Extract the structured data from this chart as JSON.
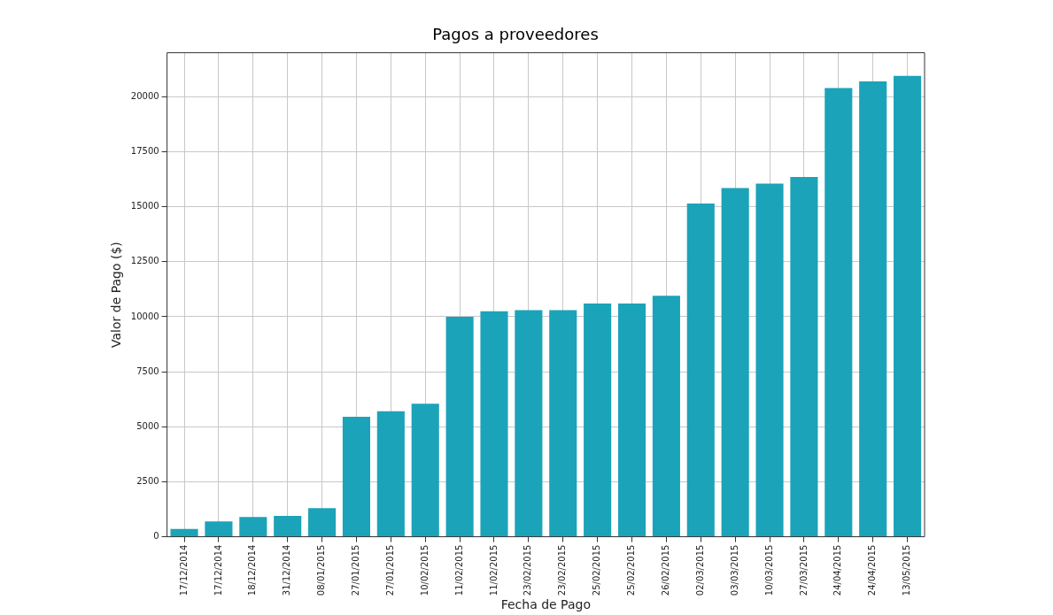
{
  "chart_data": {
    "type": "bar",
    "title": "Pagos a proveedores",
    "xlabel": "Fecha de Pago",
    "ylabel": "Valor de Pago ($)",
    "categories": [
      "17/12/2014",
      "17/12/2014",
      "18/12/2014",
      "31/12/2014",
      "08/01/2015",
      "27/01/2015",
      "27/01/2015",
      "10/02/2015",
      "11/02/2015",
      "11/02/2015",
      "23/02/2015",
      "23/02/2015",
      "25/02/2015",
      "25/02/2015",
      "26/02/2015",
      "02/03/2015",
      "03/03/2015",
      "10/03/2015",
      "27/03/2015",
      "24/04/2015",
      "24/04/2015",
      "13/05/2015"
    ],
    "values": [
      350,
      700,
      900,
      950,
      1300,
      5450,
      5700,
      6050,
      10000,
      10250,
      10300,
      10300,
      10600,
      10600,
      10950,
      15150,
      15850,
      16050,
      16350,
      20400,
      20700,
      20950
    ],
    "color": "#1ba3b9",
    "ylim": [
      0,
      22000
    ],
    "yticks": [
      0,
      2500,
      5000,
      7500,
      10000,
      12500,
      15000,
      17500,
      20000
    ],
    "grid": true
  }
}
